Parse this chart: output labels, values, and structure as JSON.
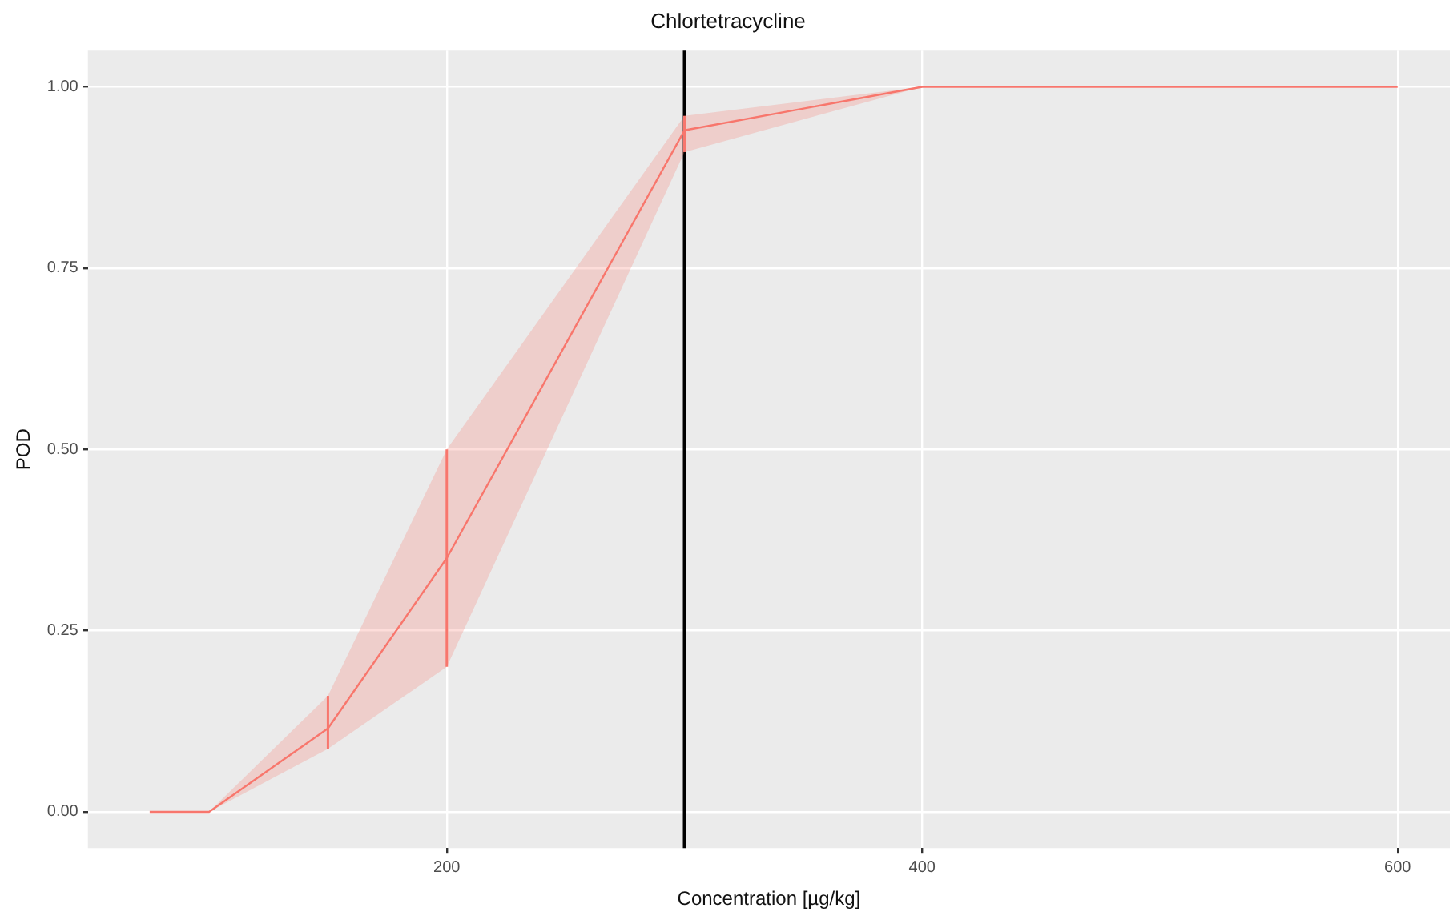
{
  "chart_data": {
    "type": "line",
    "title": "Chlortetracycline",
    "xlabel": "Concentration [µg/kg]",
    "ylabel": "POD",
    "x": [
      75,
      100,
      150,
      200,
      300,
      400,
      600
    ],
    "series": [
      {
        "color": "#f8766d",
        "values": [
          0,
          0,
          0.115,
          0.35,
          0.94,
          1,
          1
        ],
        "errors": [
          null,
          null,
          [
            0.087,
            0.16
          ],
          [
            0.2,
            0.5
          ],
          [
            0.91,
            0.96
          ],
          null,
          null
        ],
        "lower": [
          0,
          0,
          0.087,
          0.2,
          0.91,
          1,
          1
        ],
        "upper": [
          0,
          0,
          0.16,
          0.5,
          0.96,
          1,
          1
        ]
      }
    ],
    "xlim": [
      49,
      622
    ],
    "xticks": [
      200,
      400,
      600
    ],
    "ylim": [
      -0.05,
      1.05
    ],
    "yticks": [
      {
        "value": 0,
        "label": "0.00"
      },
      {
        "value": 0.25,
        "label": "0.25"
      },
      {
        "value": 0.5,
        "label": "0.50"
      },
      {
        "value": 0.75,
        "label": "0.75"
      },
      {
        "value": 1,
        "label": "1.00"
      }
    ],
    "ref_lines": [
      {
        "axis": "x",
        "value": 300,
        "color": "#000000"
      }
    ],
    "grid": true,
    "legend": false,
    "marker": "none",
    "line_style": "solid"
  }
}
